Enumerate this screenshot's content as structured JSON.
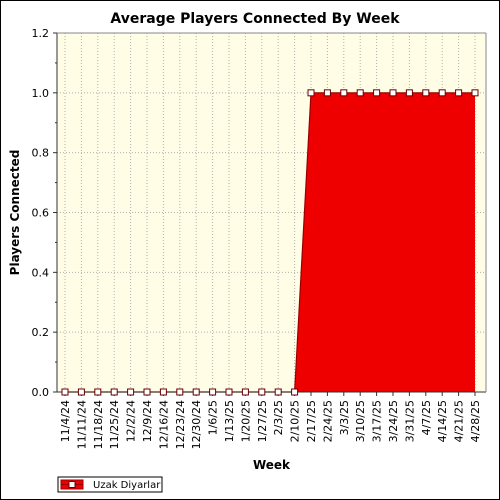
{
  "chart_data": {
    "type": "area",
    "title": "Average Players Connected By Week",
    "xlabel": "Week",
    "ylabel": "Players Connected",
    "ylim": [
      0,
      1.2
    ],
    "yticks": [
      "0.0",
      "0.2",
      "0.4",
      "0.6",
      "0.8",
      "1.0",
      "1.2"
    ],
    "categories": [
      "11/4/24",
      "11/11/24",
      "11/18/24",
      "11/25/24",
      "12/2/24",
      "12/9/24",
      "12/16/24",
      "12/23/24",
      "12/30/24",
      "1/6/25",
      "1/13/25",
      "1/20/25",
      "1/27/25",
      "2/3/25",
      "2/10/25",
      "2/17/25",
      "2/24/25",
      "3/3/25",
      "3/10/25",
      "3/17/25",
      "3/24/25",
      "3/31/25",
      "4/7/25",
      "4/14/25",
      "4/21/25",
      "4/28/25"
    ],
    "series": [
      {
        "name": "Uzak Diyarlar",
        "values": [
          0,
          0,
          0,
          0,
          0,
          0,
          0,
          0,
          0,
          0,
          0,
          0,
          0,
          0,
          0,
          1,
          1,
          1,
          1,
          1,
          1,
          1,
          1,
          1,
          1,
          1
        ],
        "color": "#ee0000"
      }
    ],
    "plot_background": "#fffde6",
    "grid": true,
    "legend_position": "bottom-left"
  }
}
